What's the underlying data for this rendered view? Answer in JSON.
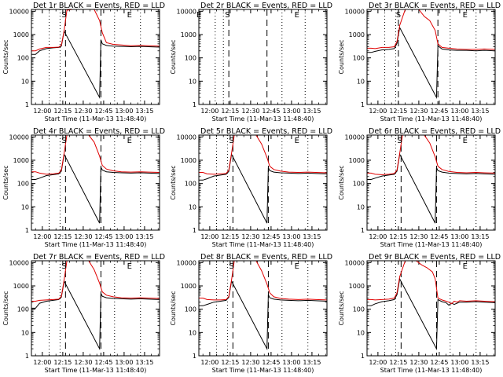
{
  "colors": {
    "events": "#000000",
    "lld": "#e00000",
    "axes": "#000000",
    "background": "#ffffff"
  },
  "chart_data": {
    "type": "line",
    "layout": "3x3 grid",
    "yscale": "log",
    "ylim": [
      1,
      12000
    ],
    "yticks": [
      1,
      10,
      100,
      1000,
      10000
    ],
    "ytick_labels": [
      "1",
      "10",
      "100",
      "1000",
      "10000"
    ],
    "ylabel": "Counts/sec",
    "xlabel": "Start Time (11-Mar-13 11:48:40)",
    "xlim": [
      "11:52",
      "13:26"
    ],
    "xticks": [
      "12:00",
      "12:15",
      "12:30",
      "12:45",
      "13:00",
      "13:15"
    ],
    "series_legend": {
      "black": "Events",
      "red": "LLD"
    },
    "panels": [
      {
        "title": "Det 1r BLACK = Events, RED = LLD",
        "dotted_lines": [
          "12:05",
          "12:13",
          "12:53",
          "13:12"
        ],
        "dashed_lines": [
          "12:17",
          "12:43"
        ],
        "flags": [
          {
            "text": "S",
            "time": "12:16"
          },
          {
            "text": "E",
            "time": "13:04"
          }
        ],
        "x": [
          "11:52",
          "11:55",
          "11:58",
          "12:03",
          "12:08",
          "12:12",
          "12:14",
          "12:16",
          "12:18",
          "12:22",
          "12:26",
          "12:30",
          "12:34",
          "12:38",
          "12:42",
          "12:44",
          "12:47",
          "12:52",
          "12:58",
          "13:05",
          "13:12",
          "13:18",
          "13:26"
        ],
        "lld": [
          200,
          200,
          240,
          280,
          280,
          290,
          350,
          1500,
          11000,
          12000,
          12000,
          12000,
          12000,
          12000,
          4000,
          1200,
          450,
          380,
          360,
          330,
          340,
          330,
          320
        ],
        "events_x": [
          "11:52",
          "11:55",
          "11:58",
          "12:03",
          "12:08",
          "12:12",
          "12:14",
          "12:16",
          "12:42",
          "12:43",
          "12:44",
          "12:47",
          "12:52",
          "12:58",
          "13:05",
          "13:12",
          "13:18",
          "13:26"
        ],
        "events": [
          140,
          140,
          200,
          250,
          270,
          280,
          320,
          1400,
          2,
          600,
          400,
          340,
          320,
          310,
          300,
          310,
          300,
          290
        ]
      },
      {
        "title": "Det 2r BLACK = Events, RED = LLD",
        "dotted_lines": [
          "12:04",
          "12:10",
          "12:53",
          "13:10"
        ],
        "dashed_lines": [
          "12:14",
          "12:42"
        ],
        "flags": [
          {
            "text": "E",
            "time": "11:52"
          },
          {
            "text": "S",
            "time": "12:13"
          },
          {
            "text": "E",
            "time": "13:04"
          }
        ],
        "x": [],
        "lld": [],
        "events_x": [],
        "events": []
      },
      {
        "title": "Det 3r BLACK = Events, RED = LLD",
        "dotted_lines": [
          "12:05",
          "12:13",
          "12:53",
          "13:12"
        ],
        "dashed_lines": [
          "12:15",
          "12:44"
        ],
        "flags": [
          {
            "text": "S",
            "time": "12:15"
          },
          {
            "text": "E",
            "time": "13:04"
          }
        ],
        "x": [
          "11:52",
          "11:55",
          "11:58",
          "12:03",
          "12:08",
          "12:12",
          "12:14",
          "12:16",
          "12:20",
          "12:24",
          "12:30",
          "12:34",
          "12:38",
          "12:42",
          "12:44",
          "12:47",
          "12:52",
          "12:58",
          "13:05",
          "13:12",
          "13:18",
          "13:26"
        ],
        "lld": [
          260,
          260,
          250,
          280,
          280,
          300,
          500,
          2500,
          12000,
          12000,
          12000,
          6000,
          4000,
          1500,
          400,
          280,
          260,
          240,
          230,
          230,
          240,
          230
        ],
        "events_x": [
          "11:52",
          "11:55",
          "11:58",
          "12:03",
          "12:08",
          "12:12",
          "12:14",
          "12:16",
          "12:43",
          "12:44",
          "12:47",
          "12:52",
          "12:58",
          "13:05",
          "13:12",
          "13:18",
          "13:26"
        ],
        "events": [
          170,
          170,
          190,
          220,
          230,
          250,
          420,
          2000,
          2,
          330,
          240,
          220,
          210,
          210,
          200,
          210,
          200
        ]
      },
      {
        "title": "Det 4r BLACK = Events, RED = LLD",
        "dotted_lines": [
          "12:05",
          "12:13",
          "12:53",
          "13:12"
        ],
        "dashed_lines": [
          "12:17",
          "12:43"
        ],
        "flags": [
          {
            "text": "S",
            "time": "12:16"
          },
          {
            "text": "E",
            "time": "13:04"
          }
        ],
        "x": [
          "11:52",
          "11:55",
          "11:58",
          "12:03",
          "12:08",
          "12:12",
          "12:14",
          "12:16",
          "12:18",
          "12:22",
          "12:26",
          "12:30",
          "12:34",
          "12:38",
          "12:42",
          "12:44",
          "12:47",
          "12:52",
          "12:58",
          "13:05",
          "13:12",
          "13:18",
          "13:26"
        ],
        "lld": [
          320,
          320,
          280,
          250,
          260,
          280,
          380,
          2000,
          12000,
          12000,
          12000,
          12000,
          12000,
          6000,
          1500,
          600,
          420,
          350,
          320,
          310,
          320,
          310,
          300
        ],
        "events_x": [
          "11:52",
          "11:55",
          "11:58",
          "12:03",
          "12:08",
          "12:12",
          "12:14",
          "12:16",
          "12:42",
          "12:43",
          "12:44",
          "12:47",
          "12:52",
          "12:58",
          "13:05",
          "13:12",
          "13:18",
          "13:26"
        ],
        "events": [
          150,
          150,
          170,
          220,
          240,
          260,
          340,
          1800,
          2,
          500,
          380,
          320,
          300,
          290,
          280,
          290,
          280,
          270
        ]
      },
      {
        "title": "Det 5r BLACK = Events, RED = LLD",
        "dotted_lines": [
          "12:05",
          "12:13",
          "12:53",
          "13:12"
        ],
        "dashed_lines": [
          "12:17",
          "12:43"
        ],
        "flags": [
          {
            "text": "S",
            "time": "12:16"
          },
          {
            "text": "E",
            "time": "13:04"
          }
        ],
        "x": [
          "11:52",
          "11:55",
          "11:58",
          "12:03",
          "12:08",
          "12:12",
          "12:14",
          "12:16",
          "12:18",
          "12:22",
          "12:26",
          "12:30",
          "12:34",
          "12:38",
          "12:42",
          "12:44",
          "12:47",
          "12:52",
          "12:58",
          "13:05",
          "13:12",
          "13:18",
          "13:26"
        ],
        "lld": [
          300,
          300,
          260,
          250,
          260,
          270,
          380,
          2000,
          12000,
          12000,
          12000,
          12000,
          12000,
          5000,
          1300,
          550,
          400,
          340,
          310,
          300,
          310,
          300,
          290
        ],
        "events_x": [
          "11:52",
          "11:55",
          "11:58",
          "12:03",
          "12:08",
          "12:12",
          "12:14",
          "12:16",
          "12:42",
          "12:43",
          "12:44",
          "12:47",
          "12:52",
          "12:58",
          "13:05",
          "13:12",
          "13:18",
          "13:26"
        ],
        "events": [
          140,
          140,
          160,
          210,
          230,
          250,
          330,
          1800,
          2,
          480,
          360,
          310,
          290,
          280,
          270,
          280,
          270,
          260
        ]
      },
      {
        "title": "Det 6r BLACK = Events, RED = LLD",
        "dotted_lines": [
          "12:05",
          "12:13",
          "12:53",
          "13:12"
        ],
        "dashed_lines": [
          "12:17",
          "12:43"
        ],
        "flags": [
          {
            "text": "S",
            "time": "12:16"
          },
          {
            "text": "E",
            "time": "13:04"
          }
        ],
        "x": [
          "11:52",
          "11:55",
          "11:58",
          "12:03",
          "12:08",
          "12:12",
          "12:14",
          "12:16",
          "12:18",
          "12:22",
          "12:26",
          "12:30",
          "12:34",
          "12:38",
          "12:42",
          "12:44",
          "12:47",
          "12:52",
          "12:58",
          "13:05",
          "13:12",
          "13:18",
          "13:26"
        ],
        "lld": [
          280,
          280,
          250,
          240,
          250,
          270,
          380,
          2000,
          12000,
          12000,
          12000,
          12000,
          12000,
          5500,
          1400,
          550,
          400,
          330,
          300,
          290,
          300,
          290,
          280
        ],
        "events_x": [
          "11:52",
          "11:55",
          "11:58",
          "12:03",
          "12:08",
          "12:12",
          "12:14",
          "12:16",
          "12:42",
          "12:43",
          "12:44",
          "12:47",
          "12:52",
          "12:58",
          "13:05",
          "13:12",
          "13:18",
          "13:26"
        ],
        "events": [
          150,
          150,
          170,
          210,
          230,
          250,
          340,
          1800,
          2,
          480,
          360,
          310,
          280,
          270,
          260,
          270,
          260,
          250
        ]
      },
      {
        "title": "Det 7r BLACK = Events, RED = LLD",
        "dotted_lines": [
          "12:05",
          "12:13",
          "12:53",
          "13:12"
        ],
        "dashed_lines": [
          "12:17",
          "12:43"
        ],
        "flags": [
          {
            "text": "S",
            "time": "12:16"
          },
          {
            "text": "E",
            "time": "13:04"
          }
        ],
        "x": [
          "11:52",
          "11:55",
          "11:58",
          "12:03",
          "12:08",
          "12:12",
          "12:14",
          "12:16",
          "12:18",
          "12:22",
          "12:26",
          "12:30",
          "12:34",
          "12:38",
          "12:42",
          "12:44",
          "12:47",
          "12:52",
          "12:58",
          "13:05",
          "13:12",
          "13:18",
          "13:26"
        ],
        "lld": [
          220,
          220,
          240,
          250,
          260,
          270,
          360,
          1800,
          12000,
          12000,
          12000,
          12000,
          12000,
          5000,
          1300,
          550,
          400,
          340,
          310,
          300,
          310,
          300,
          290
        ],
        "events_x": [
          "11:52",
          "11:55",
          "11:58",
          "12:03",
          "12:08",
          "12:12",
          "12:14",
          "12:16",
          "12:42",
          "12:43",
          "12:44",
          "12:47",
          "12:52",
          "12:58",
          "13:05",
          "13:12",
          "13:18",
          "13:26"
        ],
        "events": [
          110,
          110,
          180,
          220,
          240,
          260,
          330,
          1600,
          2,
          480,
          360,
          310,
          290,
          280,
          270,
          280,
          270,
          260
        ]
      },
      {
        "title": "Det 8r BLACK = Events, RED = LLD",
        "dotted_lines": [
          "12:05",
          "12:13",
          "12:53",
          "13:12"
        ],
        "dashed_lines": [
          "12:17",
          "12:43"
        ],
        "flags": [
          {
            "text": "S",
            "time": "12:16"
          },
          {
            "text": "E",
            "time": "13:04"
          }
        ],
        "x": [
          "11:52",
          "11:55",
          "11:58",
          "12:03",
          "12:08",
          "12:12",
          "12:14",
          "12:16",
          "12:18",
          "12:22",
          "12:26",
          "12:30",
          "12:34",
          "12:38",
          "12:42",
          "12:44",
          "12:47",
          "12:52",
          "12:58",
          "13:05",
          "13:12",
          "13:18",
          "13:26"
        ],
        "lld": [
          300,
          300,
          260,
          250,
          250,
          260,
          350,
          1800,
          12000,
          12000,
          12000,
          12000,
          12000,
          4500,
          1200,
          500,
          340,
          290,
          270,
          260,
          270,
          260,
          250
        ],
        "events_x": [
          "11:52",
          "11:55",
          "11:58",
          "12:03",
          "12:08",
          "12:12",
          "12:14",
          "12:16",
          "12:42",
          "12:43",
          "12:44",
          "12:47",
          "12:52",
          "12:58",
          "13:05",
          "13:12",
          "13:18",
          "13:26"
        ],
        "events": [
          140,
          140,
          160,
          200,
          220,
          240,
          320,
          1600,
          2,
          420,
          310,
          270,
          250,
          240,
          230,
          240,
          230,
          220
        ]
      },
      {
        "title": "Det 9r BLACK = Events, RED = LLD",
        "dotted_lines": [
          "12:05",
          "12:13",
          "12:53",
          "13:12"
        ],
        "dashed_lines": [
          "12:17",
          "12:43"
        ],
        "flags": [
          {
            "text": "E",
            "time": "13:04"
          }
        ],
        "x": [
          "11:52",
          "11:55",
          "11:58",
          "12:03",
          "12:08",
          "12:12",
          "12:14",
          "12:16",
          "12:20",
          "12:24",
          "12:28",
          "12:32",
          "12:36",
          "12:40",
          "12:42",
          "12:44",
          "12:47",
          "12:50",
          "12:52",
          "12:54",
          "12:56",
          "12:58",
          "13:00",
          "13:05",
          "13:12",
          "13:18",
          "13:26"
        ],
        "lld": [
          260,
          260,
          250,
          260,
          270,
          300,
          500,
          2500,
          12000,
          12000,
          12000,
          8000,
          6000,
          4000,
          2000,
          300,
          250,
          220,
          200,
          170,
          220,
          200,
          230,
          220,
          230,
          220,
          210
        ],
        "events_x": [
          "11:52",
          "11:55",
          "11:58",
          "12:03",
          "12:08",
          "12:12",
          "12:14",
          "12:16",
          "12:43",
          "12:44",
          "12:47",
          "12:50",
          "12:52",
          "12:54",
          "12:56",
          "12:58",
          "13:00",
          "13:05",
          "13:12",
          "13:18",
          "13:26"
        ],
        "events": [
          140,
          140,
          170,
          210,
          230,
          260,
          420,
          2000,
          2,
          260,
          210,
          190,
          150,
          180,
          160,
          180,
          200,
          200,
          210,
          200,
          190
        ]
      }
    ]
  }
}
